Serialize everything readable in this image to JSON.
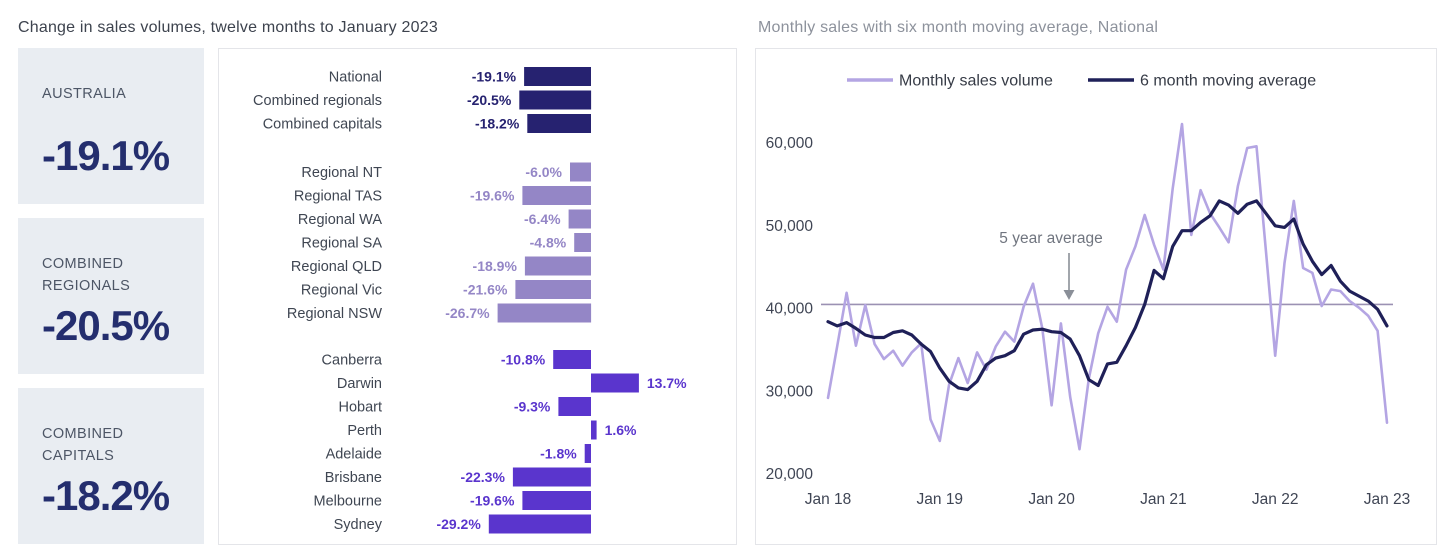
{
  "left": {
    "summary_cards": [
      {
        "label": "AUSTRALIA",
        "value": "-19.1%"
      },
      {
        "label": "COMBINED REGIONALS",
        "value": "-20.5%"
      },
      {
        "label": "COMBINED CAPITALS",
        "value": "-18.2%"
      }
    ]
  },
  "colors": {
    "navy_bar": "#262270",
    "lavender_bar": "#9486c6",
    "violet_bar": "#5a35cd",
    "card_bg": "#e9edf2",
    "card_value": "#242e6e",
    "monthly_line": "#b4a5e3",
    "moving_average_line": "#1f2058",
    "reference_line": "#9b91b3",
    "axis_text": "#3f4554",
    "category_text": "#3f4652"
  },
  "chart_data": [
    {
      "type": "bar",
      "title": "Change in sales volumes, twelve months to January 2023",
      "orientation": "horizontal",
      "unit": "%",
      "groups": [
        {
          "name": "national-aggregates",
          "color": "#262270",
          "categories": [
            "National",
            "Combined regionals",
            "Combined capitals"
          ],
          "values": [
            -19.1,
            -20.5,
            -18.2
          ]
        },
        {
          "name": "regionals",
          "color": "#9486c6",
          "categories": [
            "Regional NT",
            "Regional TAS",
            "Regional WA",
            "Regional SA",
            "Regional QLD",
            "Regional Vic",
            "Regional NSW"
          ],
          "values": [
            -6.0,
            -19.6,
            -6.4,
            -4.8,
            -18.9,
            -21.6,
            -26.7
          ]
        },
        {
          "name": "capitals",
          "color": "#5a35cd",
          "categories": [
            "Canberra",
            "Darwin",
            "Hobart",
            "Perth",
            "Adelaide",
            "Brisbane",
            "Melbourne",
            "Sydney"
          ],
          "values": [
            -10.8,
            13.7,
            -9.3,
            1.6,
            -1.8,
            -22.3,
            -19.6,
            -29.2
          ]
        }
      ]
    },
    {
      "type": "line",
      "title": "Monthly sales with six month moving average, National",
      "months": [
        "Jan 18",
        "Feb 18",
        "Mar 18",
        "Apr 18",
        "May 18",
        "Jun 18",
        "Jul 18",
        "Aug 18",
        "Sep 18",
        "Oct 18",
        "Nov 18",
        "Dec 18",
        "Jan 19",
        "Feb 19",
        "Mar 19",
        "Apr 19",
        "May 19",
        "Jun 19",
        "Jul 19",
        "Aug 19",
        "Sep 19",
        "Oct 19",
        "Nov 19",
        "Dec 19",
        "Jan 20",
        "Feb 20",
        "Mar 20",
        "Apr 20",
        "May 20",
        "Jun 20",
        "Jul 20",
        "Aug 20",
        "Sep 20",
        "Oct 20",
        "Nov 20",
        "Dec 20",
        "Jan 21",
        "Feb 21",
        "Mar 21",
        "Apr 21",
        "May 21",
        "Jun 21",
        "Jul 21",
        "Aug 21",
        "Sep 21",
        "Oct 21",
        "Nov 21",
        "Dec 21",
        "Jan 22",
        "Feb 22",
        "Mar 22",
        "Apr 22",
        "May 22",
        "Jun 22",
        "Jul 22",
        "Aug 22",
        "Sep 22",
        "Oct 22",
        "Nov 22",
        "Dec 22",
        "Jan 23"
      ],
      "series": [
        {
          "name": "Monthly sales volume",
          "color": "#b4a5e3",
          "values": [
            29200,
            35500,
            41900,
            35500,
            40400,
            35700,
            33900,
            34900,
            33100,
            34700,
            35800,
            26600,
            24000,
            30800,
            34000,
            31000,
            34700,
            32600,
            35400,
            37200,
            36000,
            40200,
            43000,
            37600,
            28300,
            38200,
            29300,
            23000,
            31500,
            37000,
            40200,
            38400,
            44700,
            47500,
            51300,
            47700,
            44700,
            54500,
            62300,
            48900,
            54300,
            51500,
            49800,
            48000,
            54800,
            59400,
            59600,
            47000,
            34300,
            45500,
            53000,
            44900,
            44300,
            40300,
            42300,
            42100,
            40900,
            40100,
            39100,
            37300,
            26200
          ]
        },
        {
          "name": "6 month moving average",
          "color": "#1f2058",
          "values": [
            38400,
            37900,
            38300,
            37600,
            36800,
            36500,
            36500,
            37100,
            37300,
            36800,
            35700,
            34800,
            32800,
            31200,
            30400,
            30200,
            31200,
            33200,
            34000,
            34300,
            34900,
            36900,
            37400,
            37500,
            37200,
            37100,
            36300,
            34300,
            31400,
            30700,
            33300,
            33500,
            35500,
            37700,
            40500,
            44600,
            43600,
            47500,
            49400,
            49400,
            50400,
            51200,
            53000,
            52500,
            51500,
            52600,
            53000,
            51500,
            50000,
            49800,
            50800,
            47800,
            45700,
            44100,
            45200,
            43300,
            42100,
            41500,
            40900,
            39900,
            37900
          ]
        }
      ],
      "reference_line": {
        "label": "5 year average",
        "value": 40500,
        "color": "#9b91b3"
      },
      "y_ticks": [
        20000,
        30000,
        40000,
        50000,
        60000
      ],
      "y_tick_labels": [
        "20,000",
        "30,000",
        "40,000",
        "50,000",
        "60,000"
      ],
      "x_ticks": [
        {
          "label": "Jan 18",
          "month_index": 0
        },
        {
          "label": "Jan 19",
          "month_index": 12
        },
        {
          "label": "Jan 20",
          "month_index": 24
        },
        {
          "label": "Jan 21",
          "month_index": 36
        },
        {
          "label": "Jan 22",
          "month_index": 48
        },
        {
          "label": "Jan 23",
          "month_index": 60
        }
      ],
      "ylim": [
        20000,
        63000
      ],
      "grid": false,
      "legend_position": "top-center"
    }
  ]
}
